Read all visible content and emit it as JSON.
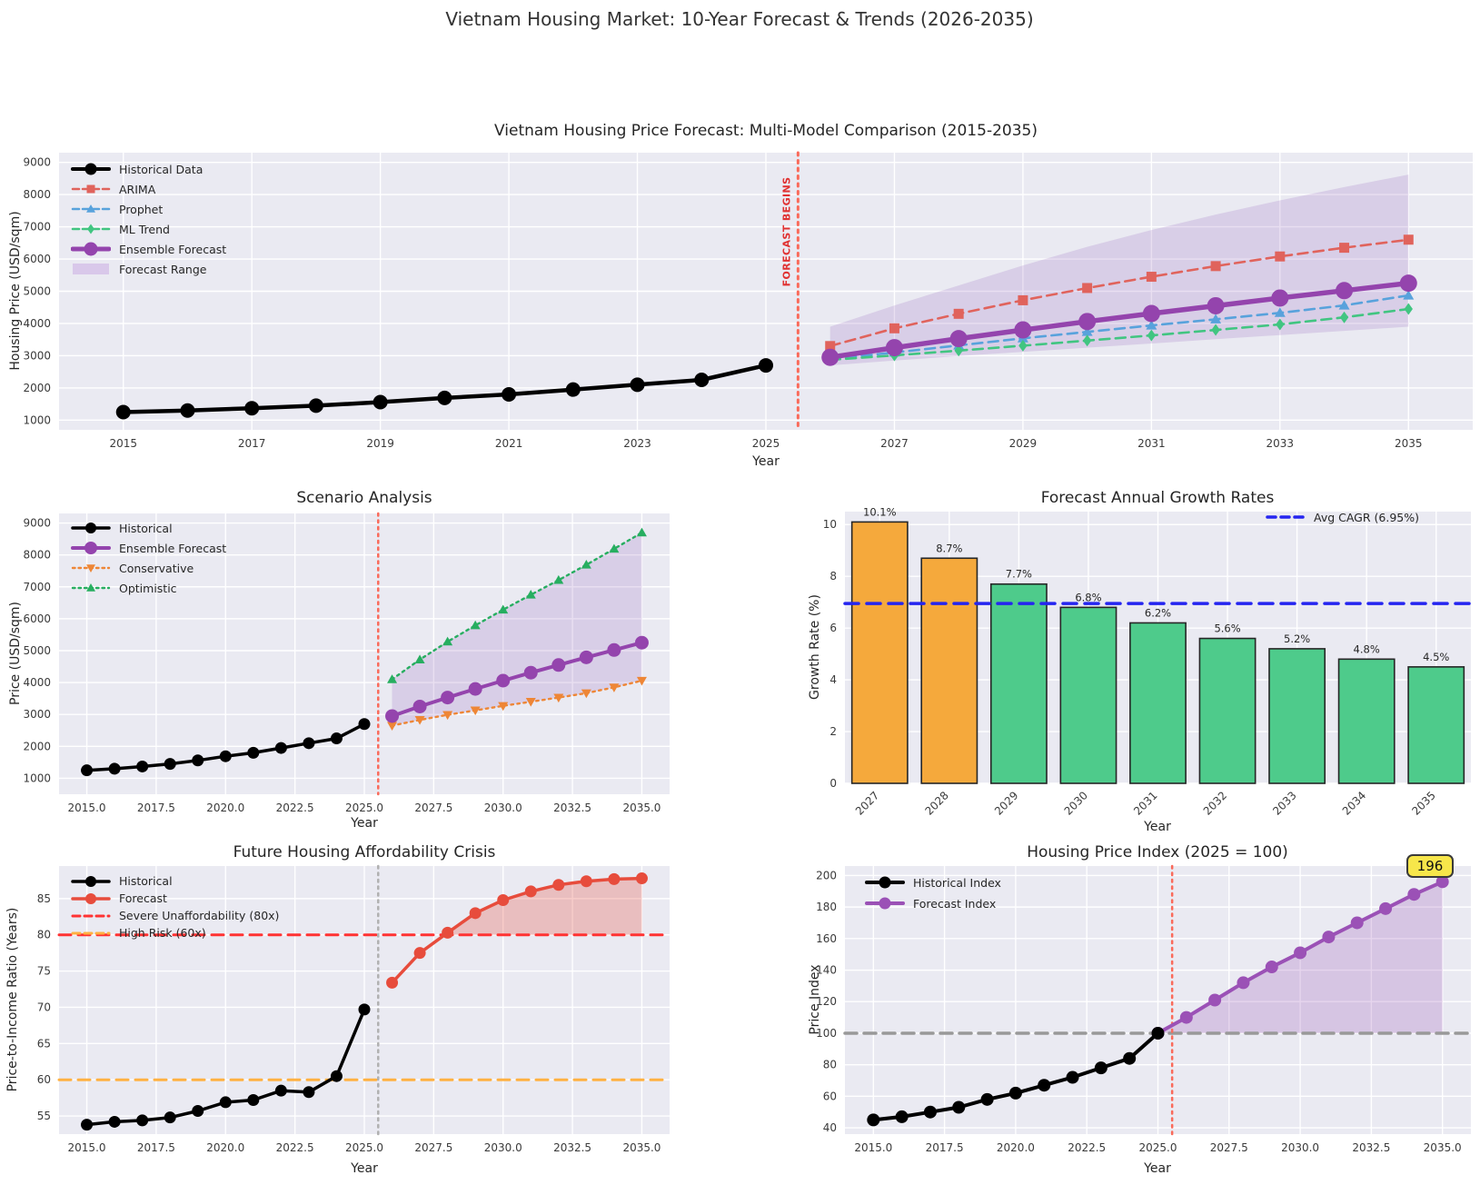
{
  "figure": {
    "title": "Vietnam Housing Market: 10-Year Forecast & Trends (2026-2035)"
  },
  "colors": {
    "plot_bg": "#eaeaf2",
    "grid": "#ffffff",
    "text": "#262626",
    "historical": "#000000",
    "arima": "#e0635c",
    "prophet": "#58a2dc",
    "ml_trend": "#41c581",
    "ensemble": "#9444ad",
    "band_fill": "rgba(155,111,191,0.22)",
    "band_swatch": "#d9c8ea",
    "conservative": "#ee8636",
    "optimistic": "#27ae60",
    "bar_orange": "#f5a93c",
    "bar_green": "#4ecb8b",
    "bar_edge": "#262626",
    "avg_cagr_line": "#2525f0",
    "afford_forecast": "#e74c3c",
    "afford_fill": "rgba(231,76,60,0.28)",
    "severe_line": "#ff3333",
    "high_risk_line": "#ffb142",
    "index_forecast": "#9b51b6",
    "index_fill": "rgba(155,89,182,0.25)",
    "baseline_gray": "#999999",
    "vline_red": "#fa6a5a",
    "vline_gray": "#b0b0b0",
    "forecast_begins_text": "#e03131",
    "annotation_box_bg": "#f7e64a"
  },
  "chart_data": [
    {
      "id": "model_comparison",
      "type": "line",
      "title": "Vietnam Housing Price Forecast: Multi-Model Comparison (2015-2035)",
      "xlabel": "Year",
      "ylabel": "Housing Price (USD/sqm)",
      "xlim": [
        2014,
        2036
      ],
      "ylim": [
        700,
        9300
      ],
      "xtick_values": [
        2015,
        2017,
        2019,
        2021,
        2023,
        2025,
        2027,
        2029,
        2031,
        2033,
        2035
      ],
      "xtick_labels": [
        "2015",
        "2017",
        "2019",
        "2021",
        "2023",
        "2025",
        "2027",
        "2029",
        "2031",
        "2033",
        "2035"
      ],
      "ytick_values": [
        1000,
        2000,
        3000,
        4000,
        5000,
        6000,
        7000,
        8000,
        9000
      ],
      "ytick_labels": [
        "1000",
        "2000",
        "3000",
        "4000",
        "5000",
        "6000",
        "7000",
        "8000",
        "9000"
      ],
      "forecast_line_x": 2025.5,
      "annotation": "FORECAST BEGINS",
      "series": [
        {
          "name": "Historical Data",
          "x": [
            2015,
            2016,
            2017,
            2018,
            2019,
            2020,
            2021,
            2022,
            2023,
            2024,
            2025
          ],
          "y": [
            1250,
            1300,
            1370,
            1450,
            1560,
            1690,
            1800,
            1950,
            2100,
            2250,
            2700
          ]
        },
        {
          "name": "ARIMA",
          "x": [
            2026,
            2027,
            2028,
            2029,
            2030,
            2031,
            2032,
            2033,
            2034,
            2035
          ],
          "y": [
            3300,
            3850,
            4300,
            4720,
            5100,
            5450,
            5780,
            6080,
            6350,
            6600
          ]
        },
        {
          "name": "Prophet",
          "x": [
            2026,
            2027,
            2028,
            2029,
            2030,
            2031,
            2032,
            2033,
            2034,
            2035
          ],
          "y": [
            2900,
            3100,
            3320,
            3540,
            3740,
            3940,
            4130,
            4330,
            4560,
            4870
          ]
        },
        {
          "name": "ML Trend",
          "x": [
            2026,
            2027,
            2028,
            2029,
            2030,
            2031,
            2032,
            2033,
            2034,
            2035
          ],
          "y": [
            2870,
            3010,
            3160,
            3310,
            3470,
            3630,
            3800,
            3970,
            4190,
            4450
          ]
        },
        {
          "name": "Ensemble Forecast",
          "x": [
            2026,
            2027,
            2028,
            2029,
            2030,
            2031,
            2032,
            2033,
            2034,
            2035
          ],
          "y": [
            2950,
            3250,
            3530,
            3800,
            4060,
            4310,
            4550,
            4790,
            5020,
            5250
          ]
        }
      ],
      "band": {
        "name": "Forecast Range",
        "x": [
          2026,
          2027,
          2028,
          2029,
          2030,
          2031,
          2032,
          2033,
          2034,
          2035
        ],
        "upper": [
          3900,
          4560,
          5180,
          5800,
          6380,
          6900,
          7380,
          7820,
          8230,
          8620
        ],
        "lower": [
          2700,
          2850,
          2990,
          3120,
          3250,
          3380,
          3510,
          3640,
          3770,
          3900
        ]
      }
    },
    {
      "id": "scenario",
      "type": "line",
      "title": "Scenario Analysis",
      "xlabel": "Year",
      "ylabel": "Price (USD/sqm)",
      "xlim": [
        2014,
        2036
      ],
      "ylim": [
        500,
        9300
      ],
      "xtick_values": [
        2015,
        2017.5,
        2020,
        2022.5,
        2025,
        2027.5,
        2030,
        2032.5,
        2035
      ],
      "xtick_labels": [
        "2015.0",
        "2017.5",
        "2020.0",
        "2022.5",
        "2025.0",
        "2027.5",
        "2030.0",
        "2032.5",
        "2035.0"
      ],
      "ytick_values": [
        1000,
        2000,
        3000,
        4000,
        5000,
        6000,
        7000,
        8000,
        9000
      ],
      "ytick_labels": [
        "1000",
        "2000",
        "3000",
        "4000",
        "5000",
        "6000",
        "7000",
        "8000",
        "9000"
      ],
      "forecast_line_x": 2025.5,
      "series": [
        {
          "name": "Historical",
          "x": [
            2015,
            2016,
            2017,
            2018,
            2019,
            2020,
            2021,
            2022,
            2023,
            2024,
            2025
          ],
          "y": [
            1250,
            1300,
            1370,
            1450,
            1560,
            1690,
            1800,
            1950,
            2100,
            2250,
            2700
          ]
        },
        {
          "name": "Ensemble Forecast",
          "x": [
            2026,
            2027,
            2028,
            2029,
            2030,
            2031,
            2032,
            2033,
            2034,
            2035
          ],
          "y": [
            2950,
            3250,
            3530,
            3800,
            4060,
            4310,
            4550,
            4790,
            5020,
            5250
          ]
        },
        {
          "name": "Conservative",
          "x": [
            2026,
            2027,
            2028,
            2029,
            2030,
            2031,
            2032,
            2033,
            2034,
            2035
          ],
          "y": [
            2650,
            2830,
            2990,
            3130,
            3270,
            3400,
            3530,
            3670,
            3850,
            4060
          ]
        },
        {
          "name": "Optimistic",
          "x": [
            2026,
            2027,
            2028,
            2029,
            2030,
            2031,
            2032,
            2033,
            2034,
            2035
          ],
          "y": [
            4100,
            4720,
            5280,
            5790,
            6280,
            6750,
            7210,
            7690,
            8190,
            8700
          ]
        }
      ]
    },
    {
      "id": "growth_rates",
      "type": "bar",
      "title": "Forecast Annual Growth Rates",
      "xlabel": "Year",
      "ylabel": "Growth Rate (%)",
      "categories": [
        "2027",
        "2028",
        "2029",
        "2030",
        "2031",
        "2032",
        "2033",
        "2034",
        "2035"
      ],
      "values": [
        10.1,
        8.7,
        7.7,
        6.8,
        6.2,
        5.6,
        5.2,
        4.8,
        4.5
      ],
      "bar_labels": [
        "10.1%",
        "8.7%",
        "7.7%",
        "6.8%",
        "6.2%",
        "5.6%",
        "5.2%",
        "4.8%",
        "4.5%"
      ],
      "highlight_first_n": 2,
      "avg_cagr": {
        "value": 6.95,
        "label": "Avg CAGR (6.95%)"
      },
      "ylim": [
        0,
        10.5
      ],
      "ytick_values": [
        0,
        2,
        4,
        6,
        8,
        10
      ],
      "ytick_labels": [
        "0",
        "2",
        "4",
        "6",
        "8",
        "10"
      ]
    },
    {
      "id": "affordability",
      "type": "line",
      "title": "Future Housing Affordability Crisis",
      "xlabel": "Year",
      "ylabel": "Price-to-Income Ratio (Years)",
      "xlim": [
        2014,
        2036
      ],
      "ylim": [
        52.5,
        89.5
      ],
      "xtick_values": [
        2015,
        2017.5,
        2020,
        2022.5,
        2025,
        2027.5,
        2030,
        2032.5,
        2035
      ],
      "xtick_labels": [
        "2015.0",
        "2017.5",
        "2020.0",
        "2022.5",
        "2025.0",
        "2027.5",
        "2030.0",
        "2032.5",
        "2035.0"
      ],
      "ytick_values": [
        55,
        60,
        65,
        70,
        75,
        80,
        85
      ],
      "ytick_labels": [
        "55",
        "60",
        "65",
        "70",
        "75",
        "80",
        "85"
      ],
      "forecast_line_x": 2025.5,
      "series": [
        {
          "name": "Historical",
          "x": [
            2015,
            2016,
            2017,
            2018,
            2019,
            2020,
            2021,
            2022,
            2023,
            2024,
            2025
          ],
          "y": [
            53.8,
            54.2,
            54.4,
            54.8,
            55.7,
            56.9,
            57.2,
            58.5,
            58.3,
            60.5,
            69.7
          ]
        },
        {
          "name": "Forecast",
          "x": [
            2026,
            2027,
            2028,
            2029,
            2030,
            2031,
            2032,
            2033,
            2034,
            2035
          ],
          "y": [
            73.4,
            77.5,
            80.3,
            83.0,
            84.8,
            86.0,
            86.9,
            87.4,
            87.7,
            87.8
          ]
        }
      ],
      "thresholds": [
        {
          "value": 80,
          "label": "Severe Unaffordability (80x)"
        },
        {
          "value": 60,
          "label": "High Risk (60x)"
        }
      ]
    },
    {
      "id": "price_index",
      "type": "line",
      "title": "Housing Price Index (2025 = 100)",
      "xlabel": "Year",
      "ylabel": "Price Index",
      "xlim": [
        2014,
        2036
      ],
      "ylim": [
        36,
        206
      ],
      "xtick_values": [
        2015,
        2017.5,
        2020,
        2022.5,
        2025,
        2027.5,
        2030,
        2032.5,
        2035
      ],
      "xtick_labels": [
        "2015.0",
        "2017.5",
        "2020.0",
        "2022.5",
        "2025.0",
        "2027.5",
        "2030.0",
        "2032.5",
        "2035.0"
      ],
      "ytick_values": [
        40,
        60,
        80,
        100,
        120,
        140,
        160,
        180,
        200
      ],
      "ytick_labels": [
        "40",
        "60",
        "80",
        "100",
        "120",
        "140",
        "160",
        "180",
        "200"
      ],
      "forecast_line_x": 2025.5,
      "baseline": 100,
      "series": [
        {
          "name": "Historical Index",
          "x": [
            2015,
            2016,
            2017,
            2018,
            2019,
            2020,
            2021,
            2022,
            2023,
            2024,
            2025
          ],
          "y": [
            45,
            47,
            50,
            53,
            58,
            62,
            67,
            72,
            78,
            84,
            100
          ]
        },
        {
          "name": "Forecast Index",
          "x": [
            2025,
            2026,
            2027,
            2028,
            2029,
            2030,
            2031,
            2032,
            2033,
            2034,
            2035
          ],
          "y": [
            100,
            110,
            121,
            132,
            142,
            151,
            161,
            170,
            179,
            188,
            196
          ]
        }
      ],
      "annotation": {
        "x": 2035,
        "y": 196,
        "label": "196"
      }
    }
  ]
}
